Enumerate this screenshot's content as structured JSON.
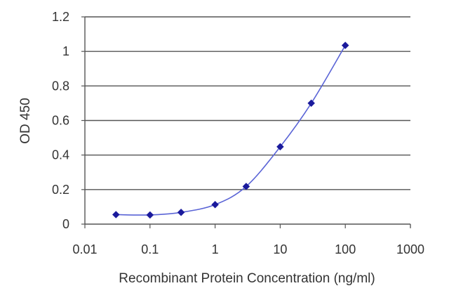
{
  "chart_data": {
    "type": "line",
    "xlabel": "Recombinant Protein Concentration (ng/ml)",
    "ylabel": "OD 450",
    "x_scale": "log",
    "xlim": [
      0.01,
      1000
    ],
    "ylim": [
      0,
      1.2
    ],
    "x_ticks": [
      {
        "value": 0.01,
        "label": "0.01"
      },
      {
        "value": 0.1,
        "label": "0.1"
      },
      {
        "value": 1,
        "label": "1"
      },
      {
        "value": 10,
        "label": "10"
      },
      {
        "value": 100,
        "label": "100"
      },
      {
        "value": 1000,
        "label": "1000"
      }
    ],
    "y_ticks": [
      {
        "value": 0,
        "label": "0"
      },
      {
        "value": 0.2,
        "label": "0.2"
      },
      {
        "value": 0.4,
        "label": "0.4"
      },
      {
        "value": 0.6,
        "label": "0.6"
      },
      {
        "value": 0.8,
        "label": "0.8"
      },
      {
        "value": 1,
        "label": "1"
      },
      {
        "value": 1.2,
        "label": "1.2"
      }
    ],
    "grid": "horizontal",
    "legend": "none",
    "series": [
      {
        "x": [
          0.03,
          0.1,
          0.3,
          1,
          3,
          10,
          30,
          100
        ],
        "y": [
          0.055,
          0.053,
          0.068,
          0.113,
          0.218,
          0.448,
          0.7,
          1.035
        ],
        "marker": "diamond",
        "color": "#1a1a9c",
        "line_color": "#5a64d6"
      }
    ]
  }
}
